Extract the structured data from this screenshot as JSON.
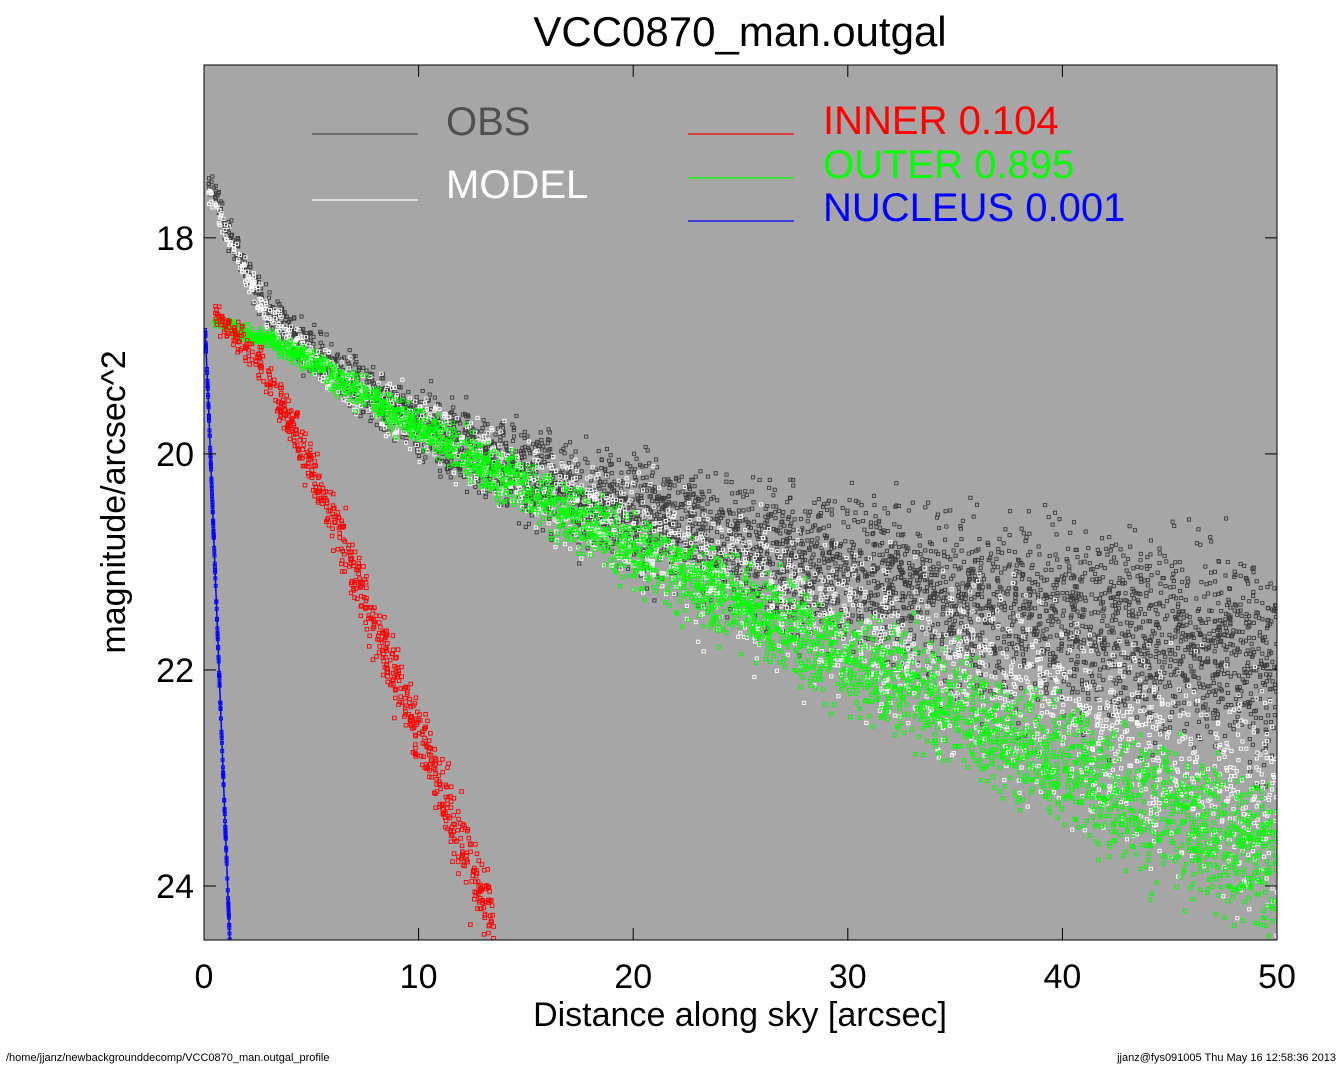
{
  "footer": {
    "path": "/home/jjanz/newbackgrounddecomp/VCC0870_man.outgal_profile",
    "stamp": "jjanz@fys091005  Thu May 16 12:58:36 2013"
  },
  "colors": {
    "background": "#a6a6a6",
    "obs": "#3c3c3c",
    "model": "#ffffff",
    "inner": "#ff0000",
    "outer": "#00ff00",
    "nucleus": "#0000ff"
  },
  "chart_data": {
    "type": "scatter",
    "title": "VCC0870_man.outgal",
    "xlabel": "Distance along sky [arcsec]",
    "ylabel": "magnitude/arcsec^2",
    "xlim": [
      0,
      50
    ],
    "ylim": [
      24.5,
      16.4
    ],
    "y_inverted": true,
    "xticks": [
      0,
      10,
      20,
      30,
      40,
      50
    ],
    "yticks": [
      18,
      20,
      22,
      24
    ],
    "grid": false,
    "legend": {
      "placement": "top",
      "entries": [
        {
          "key": "obs",
          "label": "OBS",
          "value": ""
        },
        {
          "key": "model",
          "label": "MODEL",
          "value": ""
        },
        {
          "key": "inner",
          "label": "INNER",
          "value": "0.104"
        },
        {
          "key": "outer",
          "label": "OUTER",
          "value": "0.895"
        },
        {
          "key": "nucleus",
          "label": "NUCLEUS",
          "value": "0.001"
        }
      ]
    },
    "series": [
      {
        "name": "OBS",
        "key": "obs",
        "x": [
          0.2,
          0.5,
          1,
          2,
          3,
          5,
          7,
          10,
          13,
          15,
          20,
          25,
          30,
          35,
          40,
          45,
          50
        ],
        "y": [
          17.5,
          17.6,
          17.9,
          18.3,
          18.65,
          19.05,
          19.35,
          19.7,
          20.0,
          20.2,
          20.55,
          20.85,
          21.1,
          21.35,
          21.55,
          21.75,
          21.95
        ]
      },
      {
        "name": "MODEL",
        "key": "model",
        "x": [
          0.2,
          0.5,
          1,
          2,
          3,
          5,
          7,
          10,
          13,
          15,
          20,
          25,
          30,
          35,
          40,
          45,
          50
        ],
        "y": [
          17.6,
          17.7,
          17.95,
          18.35,
          18.7,
          19.1,
          19.4,
          19.75,
          20.05,
          20.25,
          20.75,
          21.2,
          21.6,
          22.0,
          22.4,
          22.85,
          23.3
        ]
      },
      {
        "name": "INNER",
        "key": "inner",
        "x": [
          0.5,
          1,
          2,
          3,
          4,
          5,
          6,
          7,
          8,
          9,
          10,
          11,
          12,
          13,
          13.5
        ],
        "y": [
          18.7,
          18.8,
          19.0,
          19.3,
          19.7,
          20.1,
          20.6,
          21.1,
          21.6,
          22.1,
          22.6,
          23.1,
          23.6,
          24.1,
          24.4
        ]
      },
      {
        "name": "OUTER",
        "key": "outer",
        "x": [
          0.3,
          1,
          2,
          3,
          4,
          5,
          7,
          10,
          13,
          15,
          20,
          25,
          30,
          32.5,
          35,
          40,
          45,
          50
        ],
        "y": [
          18.75,
          18.8,
          18.9,
          18.95,
          19.05,
          19.15,
          19.4,
          19.75,
          20.1,
          20.35,
          20.9,
          21.4,
          21.9,
          22.15,
          22.4,
          22.9,
          23.35,
          23.8
        ]
      },
      {
        "name": "NUCLEUS",
        "key": "nucleus",
        "x": [
          0.05,
          0.2,
          0.4,
          0.6,
          0.8,
          1.0,
          1.1,
          1.2
        ],
        "y": [
          18.85,
          19.5,
          20.5,
          21.5,
          22.5,
          23.5,
          24.0,
          24.5
        ]
      }
    ]
  }
}
